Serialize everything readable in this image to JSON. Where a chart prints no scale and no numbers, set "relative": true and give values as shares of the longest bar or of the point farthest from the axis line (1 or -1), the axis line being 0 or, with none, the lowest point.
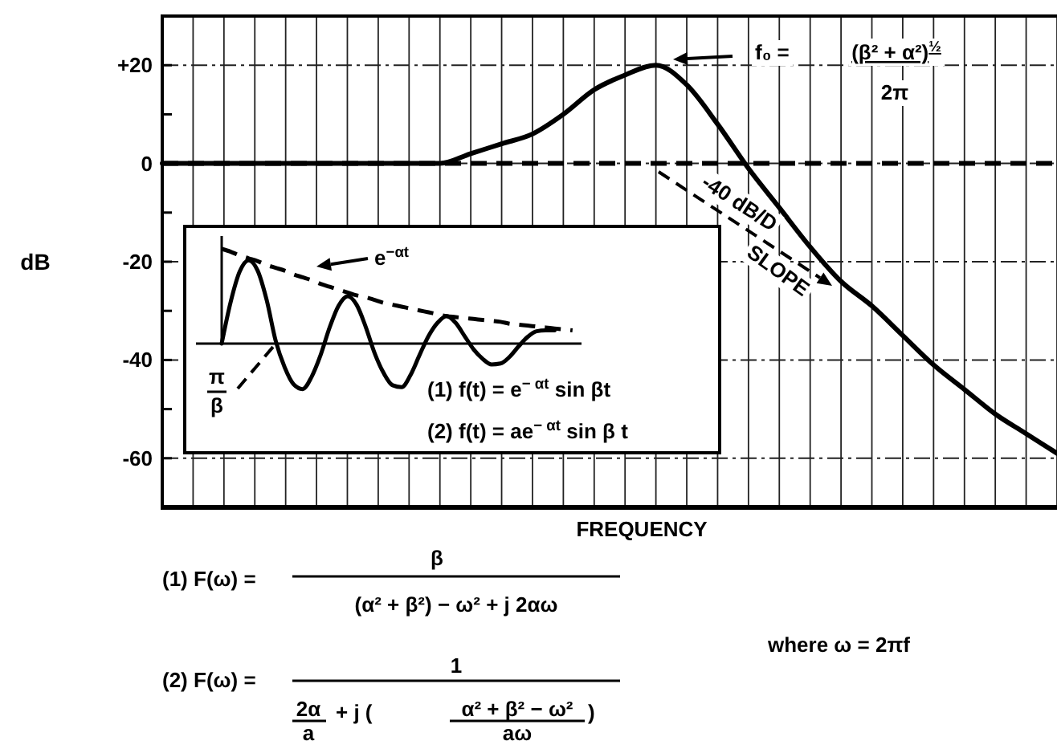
{
  "chart_data": [
    {
      "type": "line",
      "xlabel": "FREQUENCY",
      "ylabel": "dB",
      "categories": [
        null,
        null,
        null,
        null,
        null,
        null,
        null,
        null,
        null,
        null,
        null,
        null,
        null,
        null,
        null,
        null,
        null,
        null,
        null,
        null,
        null,
        null,
        null,
        null,
        null,
        null,
        null,
        null,
        null,
        null
      ],
      "values": [
        0,
        0,
        0,
        0,
        0,
        0,
        0,
        0,
        0,
        0,
        2,
        4,
        6,
        10,
        15,
        18,
        20,
        16,
        8,
        -1,
        -9,
        -17,
        -24,
        -29,
        -35,
        -41,
        -46,
        -51,
        -55,
        -59
      ],
      "color": "#000000",
      "ylim": [
        -70,
        30
      ],
      "yticks": [
        {
          "value": 20,
          "label": "+20"
        },
        {
          "value": 10,
          "label": null
        },
        0,
        {
          "value": -10,
          "label": null
        },
        -20,
        {
          "value": -30,
          "label": null
        },
        -40,
        {
          "value": -50,
          "label": null
        },
        -60
      ],
      "grid": true,
      "tick_labels": "y",
      "ref_lines": [
        {
          "axis": "y",
          "value": 0,
          "line_style": "dashed"
        }
      ],
      "annotations": [
        "f₀ =",
        "(β² + α²)$^{½}$",
        "2π",
        "-40 dB/D",
        "SLOPE",
        "(1) F(ω) =",
        "β",
        "(α² + β²) − ω² + j 2αω",
        "(2) F(ω) =",
        "1",
        "2α",
        "a",
        "+ j (",
        "α² + β² − ω²",
        "aω",
        ")",
        "where ω = 2πf"
      ]
    },
    {
      "type": "line",
      "relative": true,
      "tick_labels": false,
      "categories": [
        null,
        null,
        null,
        null,
        null,
        null,
        null,
        null,
        null,
        null,
        null,
        null,
        null,
        null,
        null,
        null,
        null,
        null,
        null,
        null,
        null,
        null,
        null,
        null,
        null,
        null,
        null,
        null,
        null,
        null,
        null,
        null,
        null,
        null,
        null,
        null,
        null,
        null,
        null,
        null,
        null
      ],
      "series": [
        {
          "color": "#000000",
          "values": [
            0,
            0.44,
            0.76,
            0.88,
            0.77,
            0.46,
            0.03,
            -0.25,
            -0.43,
            -0.48,
            -0.35,
            -0.12,
            0.17,
            0.4,
            0.5,
            0.41,
            0.18,
            -0.1,
            -0.31,
            -0.44,
            -0.46,
            -0.33,
            -0.12,
            0.08,
            0.22,
            0.29,
            0.22,
            0.08,
            -0.06,
            -0.16,
            -0.22,
            -0.21,
            -0.14,
            -0.03,
            0.07,
            0.13,
            0.14,
            0.14,
            null,
            null,
            null
          ]
        },
        {
          "color": "#000000",
          "line_style": "dashed",
          "values": [
            1,
            0.97,
            0.93,
            0.9,
            0.87,
            0.83,
            0.8,
            0.77,
            0.73,
            0.7,
            0.67,
            0.63,
            0.6,
            0.57,
            0.54,
            0.51,
            0.49,
            0.46,
            0.43,
            0.41,
            0.39,
            0.37,
            0.35,
            0.33,
            0.31,
            0.29,
            0.28,
            0.27,
            0.26,
            0.25,
            0.24,
            0.23,
            0.21,
            0.2,
            0.19,
            0.18,
            0.17,
            0.16,
            0.15,
            0.14,
            null
          ]
        }
      ],
      "annotations": [
        "e$^{−αt}$",
        "π",
        "β",
        "(1) f(t) = e$^{− αt}$ sin βt",
        "(2) f(t) = ae$^{− αt}$ sin β t"
      ]
    }
  ]
}
